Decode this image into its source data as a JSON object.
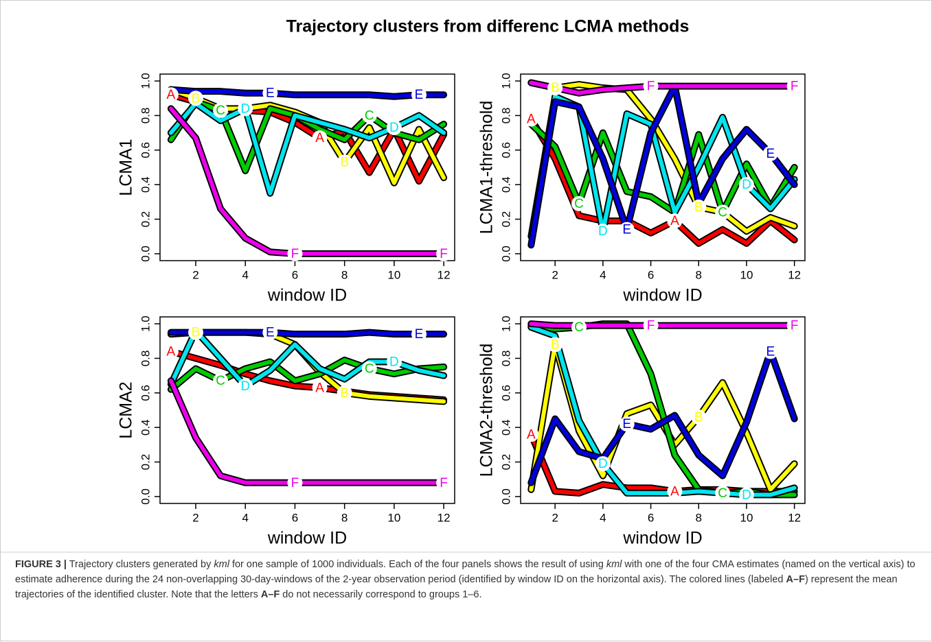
{
  "title": "Trajectory clusters from differenc LCMA methods",
  "caption": [
    "FIGURE 3 |",
    " Trajectory clusters generated by ",
    "kml",
    " for one sample of 1000 individuals. Each of the four panels shows the result of using ",
    "kml",
    " with one of the four CMA estimates (named on the vertical axis) to estimate adherence during the 24 non-overlapping 30-day-windows of the 2-year observation period (identified by window ID on the horizontal axis). The colored lines (labeled ",
    "A–F",
    ") represent the mean trajectories of the identified cluster. Note that the letters ",
    "A–F",
    " do not necessarily correspond to groups 1–6."
  ],
  "chart_data": [
    {
      "type": "line",
      "y_label": "LCMA1",
      "x_label": "window ID",
      "x": [
        1,
        2,
        3,
        4,
        5,
        6,
        7,
        8,
        9,
        10,
        11,
        12
      ],
      "xlim": [
        0.56,
        12.44
      ],
      "xticks": [
        2,
        4,
        6,
        8,
        10,
        12
      ],
      "ylim": [
        -0.04,
        1.04
      ],
      "yticks": [
        {
          "value": 0,
          "label": "0.0"
        },
        0.2,
        0.4,
        0.6,
        0.8,
        {
          "value": 1,
          "label": "1.0"
        }
      ],
      "series": [
        {
          "name": "A",
          "color": "#ff0000",
          "values": [
            0.92,
            0.88,
            0.84,
            0.83,
            0.82,
            0.76,
            0.67,
            0.71,
            0.47,
            0.72,
            0.42,
            0.69
          ]
        },
        {
          "name": "B",
          "color": "#ffff00",
          "values": [
            0.95,
            0.9,
            0.84,
            0.84,
            0.86,
            0.82,
            0.76,
            0.53,
            0.73,
            0.41,
            0.72,
            0.44
          ]
        },
        {
          "name": "C",
          "color": "#00cc00",
          "values": [
            0.66,
            0.88,
            0.83,
            0.48,
            0.84,
            0.8,
            0.72,
            0.66,
            0.8,
            0.7,
            0.66,
            0.75
          ]
        },
        {
          "name": "D",
          "color": "#00e5ee",
          "values": [
            0.7,
            0.87,
            0.77,
            0.84,
            0.35,
            0.8,
            0.76,
            0.72,
            0.67,
            0.73,
            0.8,
            0.7
          ]
        },
        {
          "name": "E",
          "color": "#0000dd",
          "values": [
            0.95,
            0.94,
            0.94,
            0.93,
            0.93,
            0.92,
            0.92,
            0.92,
            0.92,
            0.91,
            0.92,
            0.92
          ]
        },
        {
          "name": "F",
          "color": "#ee00ee",
          "values": [
            0.84,
            0.67,
            0.26,
            0.09,
            0.01,
            0.0,
            0.0,
            0.0,
            0.0,
            0.0,
            0.0,
            0.0
          ]
        }
      ]
    },
    {
      "type": "line",
      "y_label": "LCMA1-threshold",
      "x_label": "window ID",
      "x": [
        1,
        2,
        3,
        4,
        5,
        6,
        7,
        8,
        9,
        10,
        11,
        12
      ],
      "xlim": [
        0.56,
        12.44
      ],
      "xticks": [
        2,
        4,
        6,
        8,
        10,
        12
      ],
      "ylim": [
        -0.04,
        1.04
      ],
      "yticks": [
        {
          "value": 0,
          "label": "0.0"
        },
        0.2,
        0.4,
        0.6,
        0.8,
        {
          "value": 1,
          "label": "1.0"
        }
      ],
      "series": [
        {
          "name": "A",
          "color": "#ff0000",
          "values": [
            0.78,
            0.55,
            0.22,
            0.19,
            0.19,
            0.12,
            0.19,
            0.06,
            0.14,
            0.06,
            0.19,
            0.08
          ]
        },
        {
          "name": "B",
          "color": "#ffff00",
          "values": [
            0.99,
            0.96,
            0.98,
            0.96,
            0.95,
            0.78,
            0.55,
            0.27,
            0.24,
            0.13,
            0.21,
            0.16
          ]
        },
        {
          "name": "C",
          "color": "#00cc00",
          "values": [
            0.75,
            0.62,
            0.29,
            0.7,
            0.36,
            0.33,
            0.24,
            0.69,
            0.24,
            0.52,
            0.27,
            0.5
          ]
        },
        {
          "name": "D",
          "color": "#00e5ee",
          "values": [
            0.1,
            0.91,
            0.85,
            0.13,
            0.81,
            0.75,
            0.24,
            0.5,
            0.79,
            0.4,
            0.26,
            0.43
          ]
        },
        {
          "name": "E",
          "color": "#0000dd",
          "values": [
            0.05,
            0.88,
            0.85,
            0.55,
            0.14,
            0.7,
            0.97,
            0.29,
            0.55,
            0.72,
            0.58,
            0.4
          ]
        },
        {
          "name": "F",
          "color": "#ee00ee",
          "values": [
            0.99,
            0.96,
            0.93,
            0.95,
            0.96,
            0.97,
            0.97,
            0.97,
            0.97,
            0.97,
            0.97,
            0.97
          ]
        }
      ]
    },
    {
      "type": "line",
      "y_label": "LCMA2",
      "x_label": "window ID",
      "x": [
        1,
        2,
        3,
        4,
        5,
        6,
        7,
        8,
        9,
        10,
        11,
        12
      ],
      "xlim": [
        0.56,
        12.44
      ],
      "xticks": [
        2,
        4,
        6,
        8,
        10,
        12
      ],
      "ylim": [
        -0.04,
        1.04
      ],
      "yticks": [
        {
          "value": 0,
          "label": "0.0"
        },
        0.2,
        0.4,
        0.6,
        0.8,
        {
          "value": 1,
          "label": "1.0"
        }
      ],
      "series": [
        {
          "name": "A",
          "color": "#ff0000",
          "values": [
            0.84,
            0.8,
            0.76,
            0.71,
            0.67,
            0.64,
            0.63,
            0.61,
            0.59,
            0.58,
            0.57,
            0.56
          ]
        },
        {
          "name": "B",
          "color": "#ffff00",
          "values": [
            0.94,
            0.95,
            0.95,
            0.95,
            0.94,
            0.88,
            0.72,
            0.6,
            0.58,
            0.57,
            0.56,
            0.55
          ]
        },
        {
          "name": "C",
          "color": "#00cc00",
          "values": [
            0.62,
            0.74,
            0.67,
            0.74,
            0.78,
            0.67,
            0.71,
            0.79,
            0.74,
            0.71,
            0.74,
            0.75
          ]
        },
        {
          "name": "D",
          "color": "#00e5ee",
          "values": [
            0.65,
            0.96,
            0.8,
            0.64,
            0.73,
            0.88,
            0.74,
            0.68,
            0.78,
            0.78,
            0.73,
            0.7
          ]
        },
        {
          "name": "E",
          "color": "#0000dd",
          "values": [
            0.95,
            0.95,
            0.95,
            0.95,
            0.95,
            0.94,
            0.94,
            0.94,
            0.95,
            0.94,
            0.94,
            0.94
          ]
        },
        {
          "name": "F",
          "color": "#ee00ee",
          "values": [
            0.67,
            0.34,
            0.12,
            0.08,
            0.08,
            0.08,
            0.08,
            0.08,
            0.08,
            0.08,
            0.08,
            0.08
          ]
        }
      ]
    },
    {
      "type": "line",
      "y_label": "LCMA2-threshold",
      "x_label": "window ID",
      "x": [
        1,
        2,
        3,
        4,
        5,
        6,
        7,
        8,
        9,
        10,
        11,
        12
      ],
      "xlim": [
        0.56,
        12.44
      ],
      "xticks": [
        2,
        4,
        6,
        8,
        10,
        12
      ],
      "ylim": [
        -0.04,
        1.04
      ],
      "yticks": [
        {
          "value": 0,
          "label": "0.0"
        },
        0.2,
        0.4,
        0.6,
        0.8,
        {
          "value": 1,
          "label": "1.0"
        }
      ],
      "series": [
        {
          "name": "A",
          "color": "#ff0000",
          "values": [
            0.36,
            0.03,
            0.02,
            0.07,
            0.05,
            0.05,
            0.03,
            0.04,
            0.04,
            0.03,
            0.03,
            0.03
          ]
        },
        {
          "name": "B",
          "color": "#ffff00",
          "values": [
            0.04,
            0.88,
            0.38,
            0.12,
            0.48,
            0.53,
            0.3,
            0.46,
            0.66,
            0.37,
            0.04,
            0.19
          ]
        },
        {
          "name": "C",
          "color": "#00cc00",
          "values": [
            0.99,
            0.97,
            0.98,
            1.0,
            1.0,
            0.71,
            0.24,
            0.04,
            0.02,
            0.03,
            0.01,
            0.01
          ]
        },
        {
          "name": "D",
          "color": "#00e5ee",
          "values": [
            0.98,
            0.93,
            0.44,
            0.19,
            0.02,
            0.02,
            0.02,
            0.03,
            0.02,
            0.01,
            0.01,
            0.05
          ]
        },
        {
          "name": "E",
          "color": "#0000dd",
          "values": [
            0.08,
            0.45,
            0.26,
            0.22,
            0.42,
            0.39,
            0.47,
            0.24,
            0.12,
            0.43,
            0.84,
            0.45
          ]
        },
        {
          "name": "F",
          "color": "#ee00ee",
          "values": [
            1.0,
            0.99,
            0.99,
            0.99,
            0.99,
            0.99,
            0.99,
            0.99,
            0.99,
            0.99,
            0.99,
            0.99
          ]
        }
      ]
    }
  ]
}
